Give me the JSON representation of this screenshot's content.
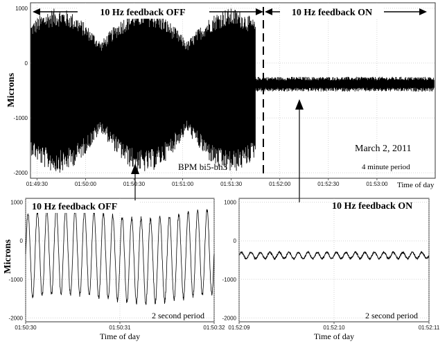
{
  "chart_data": [
    {
      "type": "line",
      "ylabel": "Microns",
      "xlabel": "Time of day",
      "ylim": [
        -2100,
        1100
      ],
      "y_ticks": [
        "1000",
        "0",
        "-1000",
        "-2000"
      ],
      "x_ticks": [
        "01:49:30",
        "01:50:00",
        "01:50:30",
        "01:51:00",
        "01:51:30",
        "01:52:00",
        "01:52:30",
        "01:53:00"
      ],
      "annotations": {
        "off": "10 Hz feedback OFF",
        "on": "10 Hz feedback ON",
        "date": "March 2, 2011",
        "bpm": "BPM bi5-bh3",
        "period": "4 minute period"
      },
      "series": [
        {
          "values_description": [],
          "off_segment": {
            "x_start": "01:49:30",
            "x_end": "01:51:45",
            "center": -350,
            "envelope_max": 1000,
            "envelope_min": -2000
          },
          "on_segment": {
            "x_start": "01:51:45",
            "x_end": "01:53:30",
            "center": -380,
            "envelope_max": -250,
            "envelope_min": -520
          }
        }
      ],
      "grid": true
    },
    {
      "type": "line",
      "title": "10 Hz feedback OFF",
      "ylabel": "Microns",
      "xlabel": "Time of day",
      "ylim": [
        -2100,
        1100
      ],
      "y_ticks": [
        "1000",
        "0",
        "-1000",
        "-2000"
      ],
      "x_ticks": [
        "01:50:30",
        "01:50:31",
        "01:50:32"
      ],
      "period_label": "2 second period",
      "series": [
        {
          "frequency_hz": 10,
          "center": -400,
          "amplitude": 1100,
          "duration_s": 2
        }
      ],
      "grid": true
    },
    {
      "type": "line",
      "title": "10 Hz feedback ON",
      "xlabel": "Time of day",
      "ylim": [
        -2100,
        1100
      ],
      "y_ticks": [
        "1000",
        "0",
        "-1000",
        "-2000"
      ],
      "x_ticks": [
        "01:52:09",
        "01:52:10",
        "01:52:11"
      ],
      "period_label": "2 second period",
      "series": [
        {
          "frequency_hz": 10,
          "center": -380,
          "amplitude": 80,
          "duration_s": 2
        }
      ],
      "grid": true
    }
  ]
}
